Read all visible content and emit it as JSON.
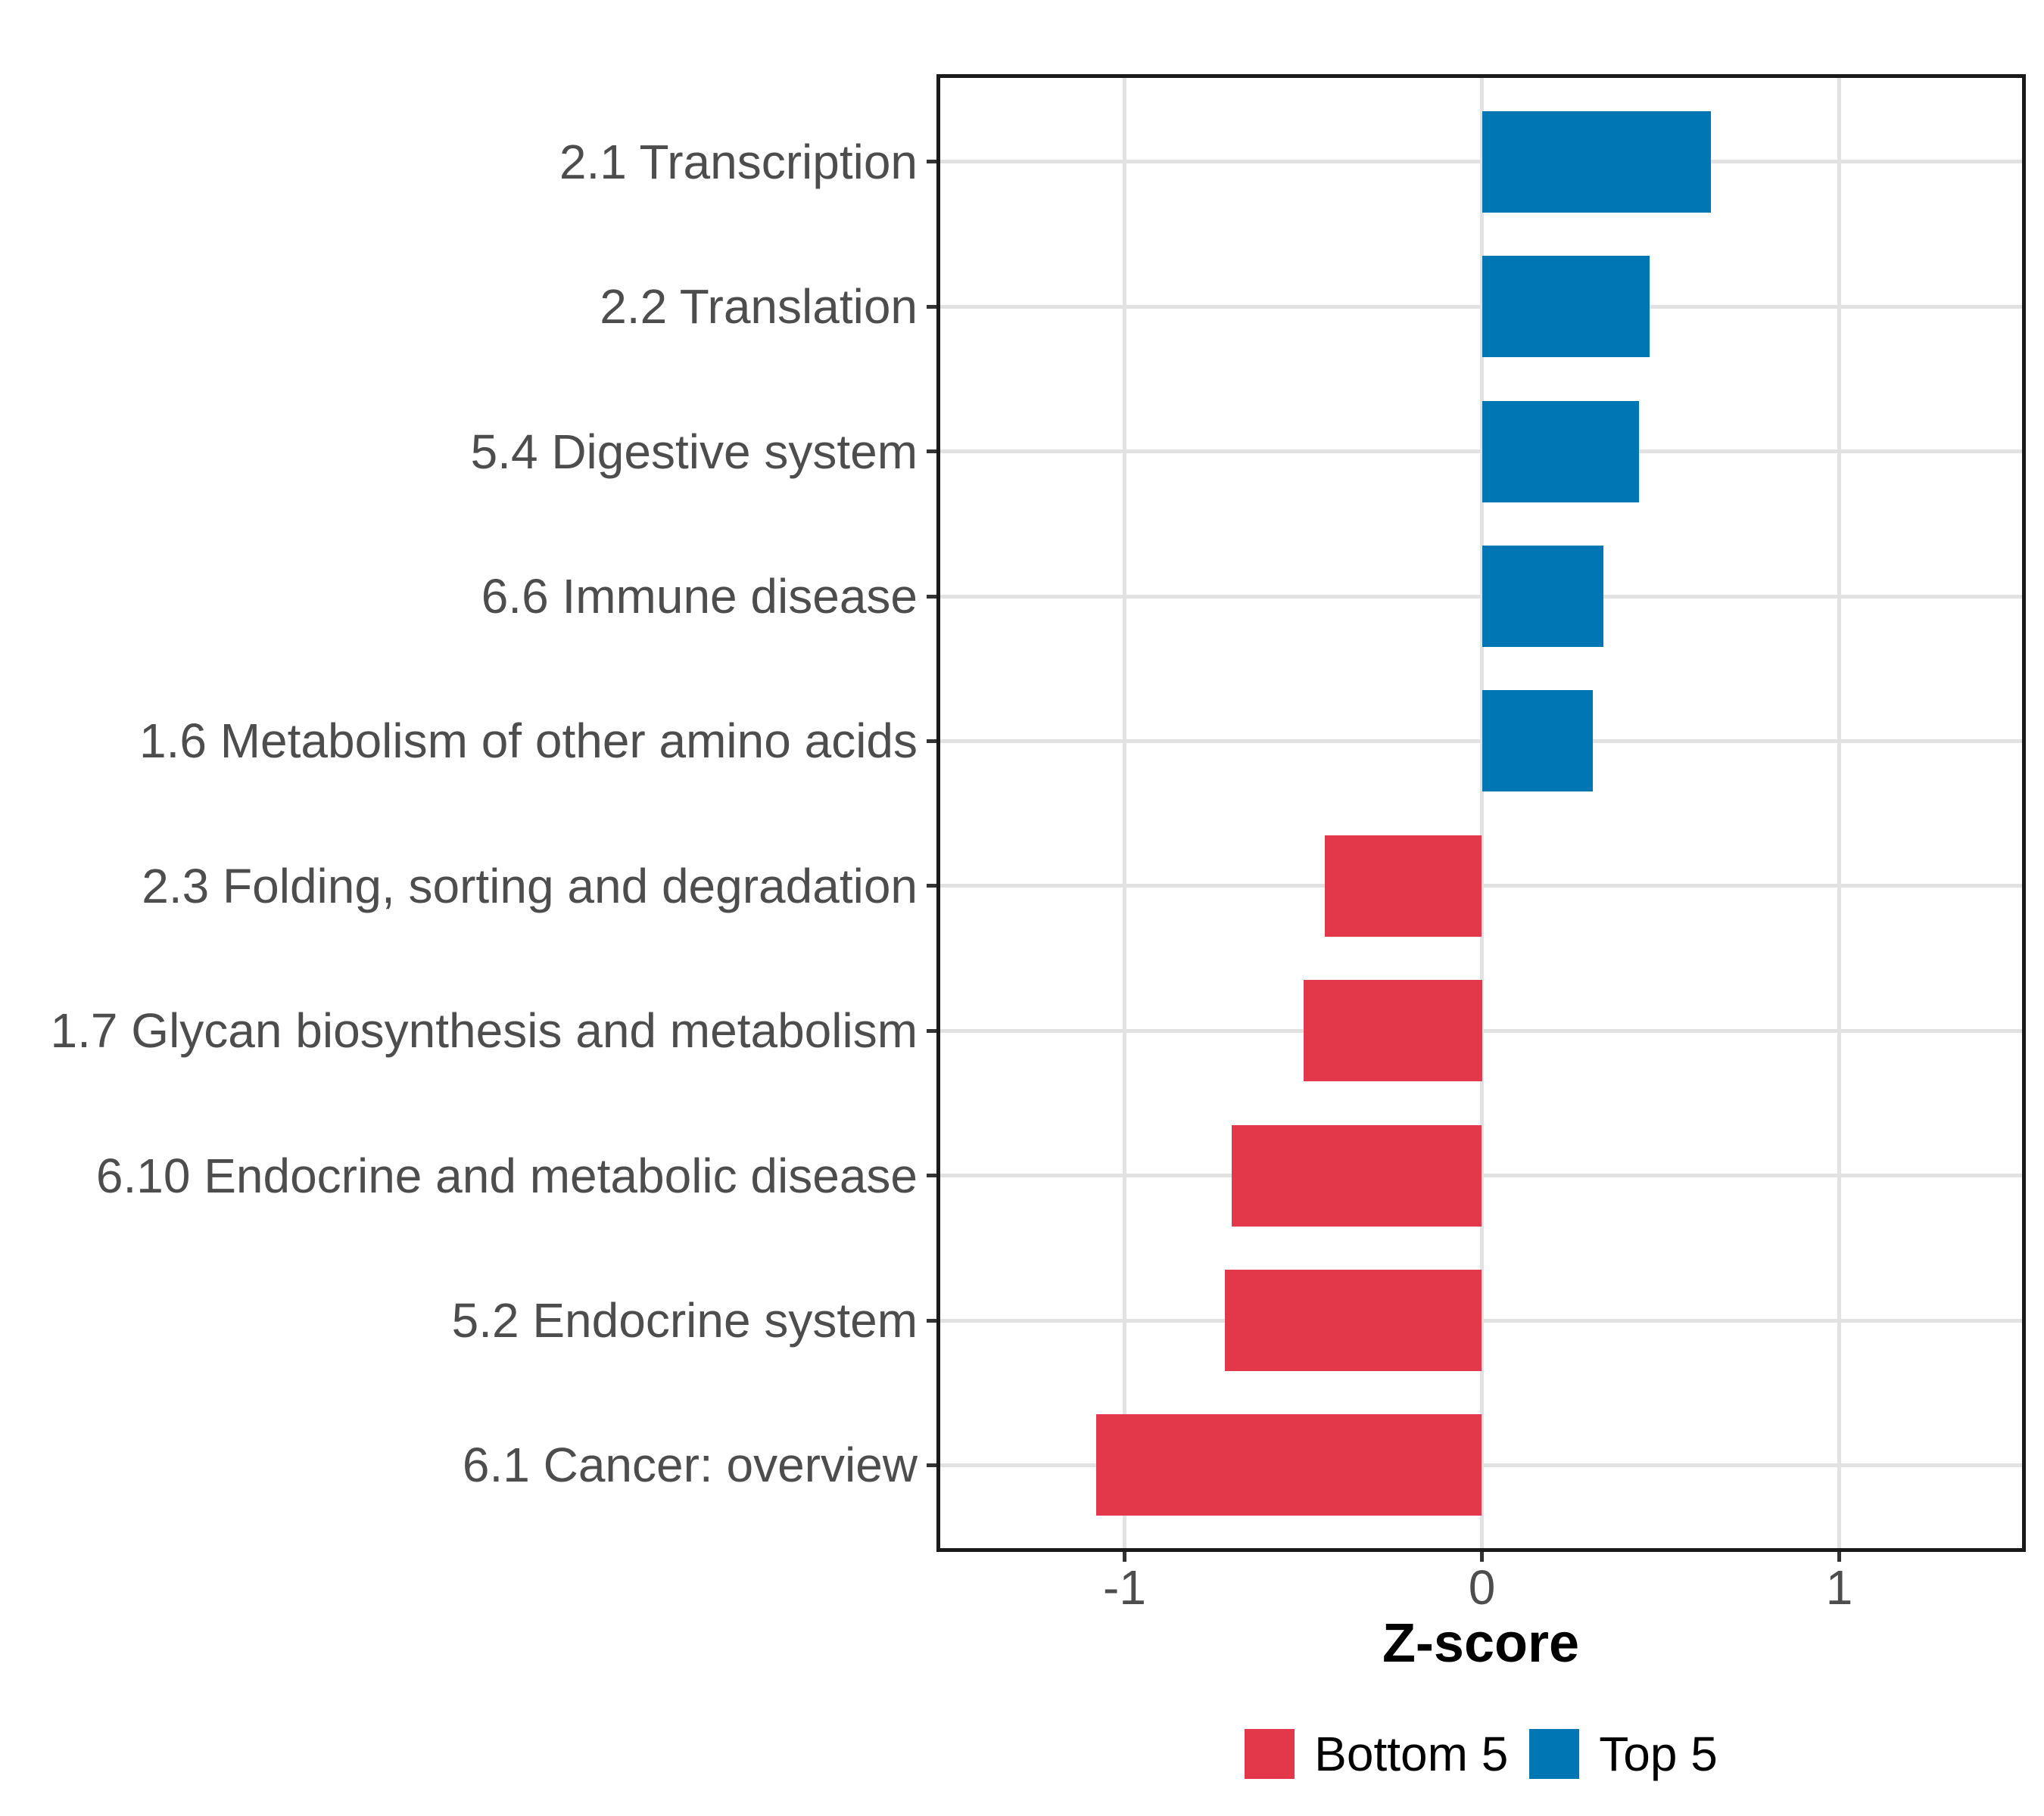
{
  "chart_data": {
    "type": "bar",
    "orientation": "horizontal",
    "title": "",
    "xlabel": "Z-score",
    "categories": [
      "2.1 Transcription",
      "2.2 Translation",
      "5.4 Digestive system",
      "6.6 Immune disease",
      "1.6 Metabolism of other amino acids",
      "2.3 Folding, sorting and degradation",
      "1.7 Glycan biosynthesis and metabolism",
      "6.10 Endocrine and metabolic disease",
      "5.2 Endocrine system",
      "6.1 Cancer: overview"
    ],
    "bars": [
      {
        "category": "2.1 Transcription",
        "value": 0.64,
        "group": "Top 5"
      },
      {
        "category": "2.2 Translation",
        "value": 0.47,
        "group": "Top 5"
      },
      {
        "category": "5.4 Digestive system",
        "value": 0.44,
        "group": "Top 5"
      },
      {
        "category": "6.6 Immune disease",
        "value": 0.34,
        "group": "Top 5"
      },
      {
        "category": "1.6 Metabolism of other amino acids",
        "value": 0.31,
        "group": "Top 5"
      },
      {
        "category": "2.3 Folding, sorting and degradation",
        "value": -0.44,
        "group": "Bottom 5"
      },
      {
        "category": "1.7 Glycan biosynthesis and metabolism",
        "value": -0.5,
        "group": "Bottom 5"
      },
      {
        "category": "6.10 Endocrine and metabolic disease",
        "value": -0.7,
        "group": "Bottom 5"
      },
      {
        "category": "5.2 Endocrine system",
        "value": -0.72,
        "group": "Bottom 5"
      },
      {
        "category": "6.1 Cancer: overview",
        "value": -1.08,
        "group": "Bottom 5"
      }
    ],
    "x_ticks": [
      -1,
      0,
      1
    ],
    "x_tick_labels": [
      "-1",
      "0",
      "1"
    ],
    "xlim": [
      -1.52,
      1.52
    ],
    "grid": "major",
    "legend": {
      "position": "bottom",
      "entries": [
        {
          "label": "Bottom 5",
          "color": "#e3384a"
        },
        {
          "label": "Top 5",
          "color": "#0076b5"
        }
      ]
    },
    "colors": {
      "Bottom 5": "#e3384a",
      "Top 5": "#0076b5",
      "grid": "#e2e2e2",
      "panel_border": "#1a1a1a",
      "tick": "#333333",
      "axis_text": "#4d4d4d",
      "title_text": "#000000"
    }
  }
}
